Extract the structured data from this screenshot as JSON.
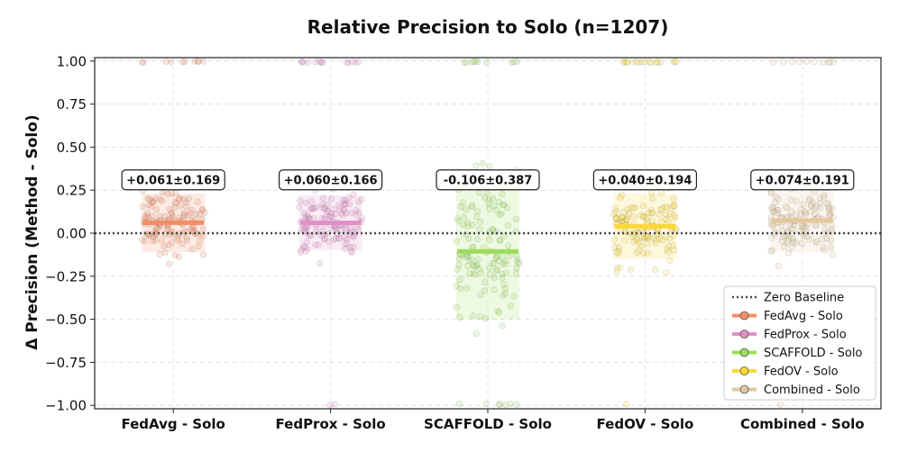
{
  "chart_data": {
    "type": "scatter",
    "title": "Relative Precision to Solo (n=1207)",
    "xlabel": "",
    "ylabel": "Δ Precision (Method - Solo)",
    "ylim": [
      -1.0,
      1.0
    ],
    "yticks": [
      "1.00",
      "0.75",
      "0.50",
      "0.25",
      "0.00",
      "−0.25",
      "−0.50",
      "−0.75",
      "−1.00"
    ],
    "ytick_values": [
      1.0,
      0.75,
      0.5,
      0.25,
      0.0,
      -0.25,
      -0.5,
      -0.75,
      -1.0
    ],
    "grid": true,
    "n": 1207,
    "categories": [
      "FedAvg - Solo",
      "FedProx - Solo",
      "SCAFFOLD - Solo",
      "FedOV - Solo",
      "Combined - Solo"
    ],
    "series": [
      {
        "name": "FedAvg - Solo",
        "mean": 0.061,
        "std": 0.169,
        "label": "+0.061±0.169",
        "color": "#f28e65",
        "iqr": [
          -0.11,
          0.23
        ]
      },
      {
        "name": "FedProx - Solo",
        "mean": 0.06,
        "std": 0.166,
        "label": "+0.060±0.166",
        "color": "#e38fc7",
        "iqr": [
          -0.1,
          0.22
        ]
      },
      {
        "name": "SCAFFOLD - Solo",
        "mean": -0.106,
        "std": 0.387,
        "label": "-0.106±0.387",
        "color": "#9ddc5a",
        "iqr": [
          -0.5,
          0.28
        ]
      },
      {
        "name": "FedOV - Solo",
        "mean": 0.04,
        "std": 0.194,
        "label": "+0.040±0.194",
        "color": "#fbd838",
        "iqr": [
          -0.15,
          0.23
        ]
      },
      {
        "name": "Combined - Solo",
        "mean": 0.074,
        "std": 0.191,
        "label": "+0.074±0.191",
        "color": "#e3c79f",
        "iqr": [
          -0.11,
          0.26
        ]
      }
    ],
    "baseline": {
      "value": 0.0,
      "label": "Zero Baseline"
    },
    "legend": {
      "position": "bottom-right",
      "entries": [
        "Zero Baseline",
        "FedAvg - Solo",
        "FedProx - Solo",
        "SCAFFOLD - Solo",
        "FedOV - Solo",
        "Combined - Solo"
      ]
    }
  }
}
